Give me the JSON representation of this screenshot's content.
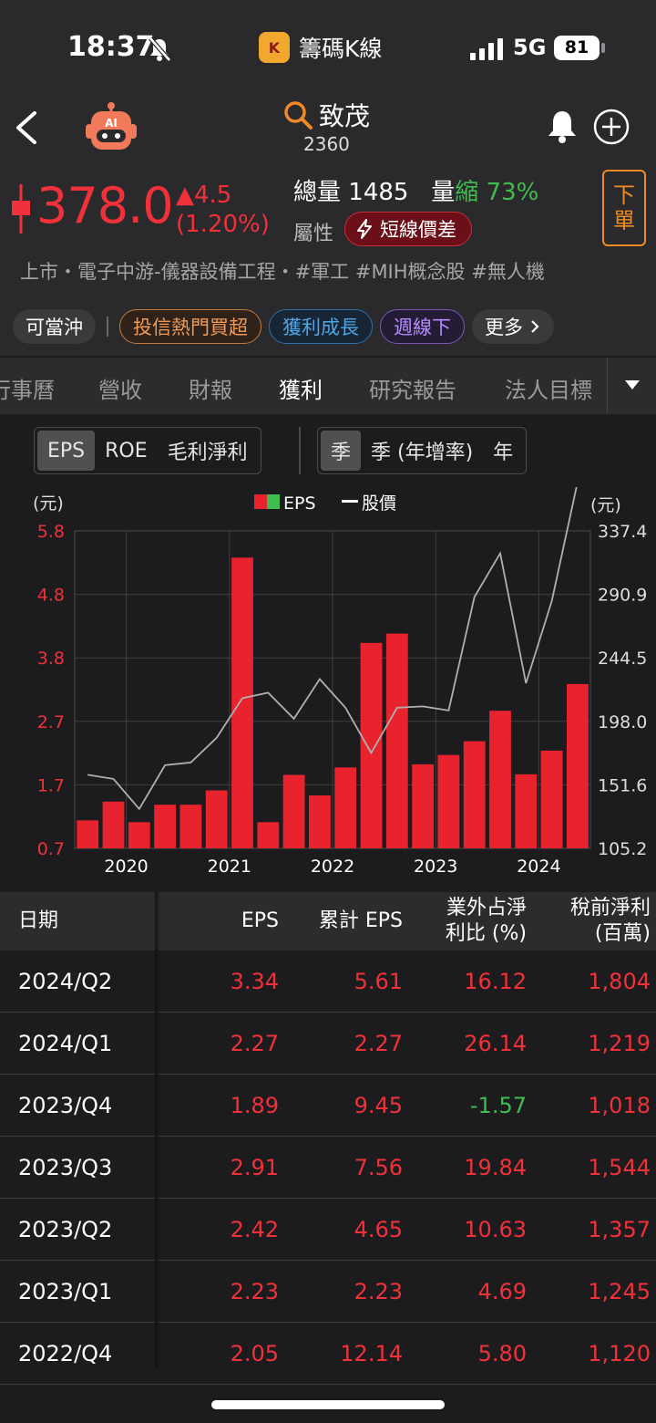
{
  "status_bar": {
    "time": "18:37",
    "app_name": "籌碼K線",
    "app_logo_letter": "K",
    "network": "5G",
    "battery": "81"
  },
  "header": {
    "stock_name": "致茂",
    "stock_code": "2360",
    "price": "378.0",
    "change": "▲4.5",
    "change_pct": "(1.20%)",
    "volume_label": "總量",
    "volume_value": "1485",
    "volume_shrink_prefix": "量",
    "volume_shrink_word": "縮",
    "volume_shrink_pct": "73%",
    "attribute_label": "屬性",
    "attribute_badge": "短線價差",
    "order_button": [
      "下",
      "單"
    ],
    "categories": "上市・電子中游-儀器設備工程・#軍工 #MIH概念股 #無人機",
    "price_color": "#f0313a"
  },
  "tags": {
    "day_trade": "可當沖",
    "items": [
      "投信熱門買超",
      "獲利成長",
      "週線下"
    ],
    "more": "更多"
  },
  "tabs": [
    "行事曆",
    "營收",
    "財報",
    "獲利",
    "研究報告",
    "法人目標"
  ],
  "active_tab": "獲利",
  "segment_metric": [
    "EPS",
    "ROE",
    "毛利淨利"
  ],
  "segment_period": [
    "季",
    "季 (年增率)",
    "年"
  ],
  "chart_data": {
    "type": "bar",
    "left_unit": "(元)",
    "right_unit": "(元)",
    "legend": {
      "bar": "EPS",
      "line": "股價"
    },
    "left_ticks": [
      "5.8",
      "4.8",
      "3.8",
      "2.7",
      "1.7",
      "0.7"
    ],
    "right_ticks": [
      "337.4",
      "290.9",
      "244.5",
      "198.0",
      "151.6",
      "105.2"
    ],
    "x_ticks": [
      "2020",
      "2021",
      "2022",
      "2023",
      "2024"
    ],
    "ylim_left": [
      0.7,
      5.8
    ],
    "ylim_right": [
      105.2,
      337.4
    ],
    "eps": [
      1.15,
      1.45,
      1.12,
      1.4,
      1.4,
      1.63,
      5.37,
      1.12,
      1.88,
      1.55,
      2.0,
      4.0,
      4.15,
      2.05,
      2.2,
      2.42,
      2.91,
      1.89,
      2.27,
      3.34
    ],
    "price": [
      159,
      156,
      134,
      166,
      168,
      186,
      215,
      219,
      200,
      229,
      208,
      175,
      208,
      209,
      206,
      289,
      321,
      226,
      286,
      373
    ],
    "bar_color": "#e8232e",
    "line_color": "#b0b0b0",
    "grid": true
  },
  "table": {
    "headers": {
      "date": "日期",
      "eps": "EPS",
      "cum_eps": "累計 EPS",
      "nonop": [
        "業外占淨",
        "利比 (%)"
      ],
      "pretax": [
        "稅前淨利",
        "(百萬)"
      ]
    },
    "rows": [
      {
        "date": "2024/Q2",
        "eps": "3.34",
        "cum_eps": "5.61",
        "nonop": "16.12",
        "pretax": "1,804"
      },
      {
        "date": "2024/Q1",
        "eps": "2.27",
        "cum_eps": "2.27",
        "nonop": "26.14",
        "pretax": "1,219"
      },
      {
        "date": "2023/Q4",
        "eps": "1.89",
        "cum_eps": "9.45",
        "nonop": "-1.57",
        "pretax": "1,018"
      },
      {
        "date": "2023/Q3",
        "eps": "2.91",
        "cum_eps": "7.56",
        "nonop": "19.84",
        "pretax": "1,544"
      },
      {
        "date": "2023/Q2",
        "eps": "2.42",
        "cum_eps": "4.65",
        "nonop": "10.63",
        "pretax": "1,357"
      },
      {
        "date": "2023/Q1",
        "eps": "2.23",
        "cum_eps": "2.23",
        "nonop": "4.69",
        "pretax": "1,245"
      },
      {
        "date": "2022/Q4",
        "eps": "2.05",
        "cum_eps": "12.14",
        "nonop": "5.80",
        "pretax": "1,120"
      }
    ]
  }
}
